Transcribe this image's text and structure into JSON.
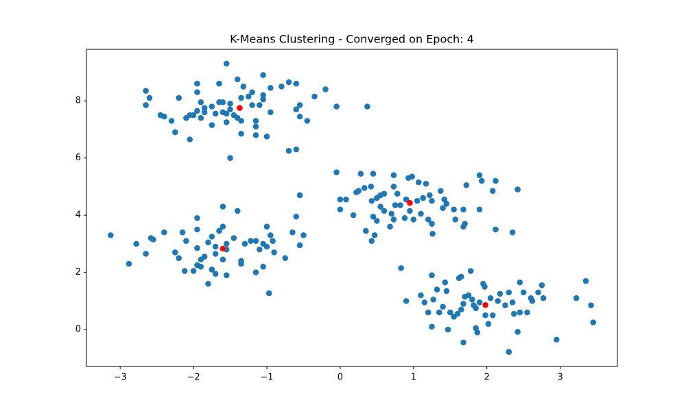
{
  "chart_data": {
    "type": "scatter",
    "title": "K-Means Clustering - Converged on Epoch: 4",
    "xlim": [
      -3.46,
      3.78
    ],
    "ylim": [
      -1.29,
      9.8
    ],
    "xticks": [
      {
        "value": -3,
        "label": "−3"
      },
      {
        "value": -2,
        "label": "−2"
      },
      {
        "value": -1,
        "label": "−1"
      },
      0,
      1,
      2,
      3
    ],
    "yticks": [
      0,
      2,
      4,
      6,
      8
    ],
    "series": [
      {
        "color": "#1f77b4",
        "x": [
          -1.55,
          -2.65,
          -2.6,
          -2.65,
          -2.2,
          -1.95,
          -1.95,
          -1.65,
          -1.4,
          -1.32,
          -1.05,
          -0.95,
          -0.8,
          -0.7,
          -0.6,
          -0.35,
          -0.2,
          -0.55,
          -0.6,
          -0.55,
          -0.45,
          -0.95,
          -1.05,
          -1.05,
          -1.2,
          -1.25,
          -1.35,
          -1.5,
          -1.6,
          -1.65,
          -1.75,
          -1.9,
          -1.85,
          -1.95,
          -1.9,
          -2.05,
          -2.1,
          -2.3,
          -2.45,
          -2.4,
          -2.0,
          -2.25,
          -2.05,
          -1.75,
          -1.6,
          -1.55,
          -1.5,
          -1.45,
          -1.4,
          -1.35,
          -1.55,
          -1.35,
          -1.15,
          -1.15,
          -1.15,
          -1.0,
          -0.7,
          -0.6,
          -1.5,
          -0.05,
          0.37,
          -1.2,
          -1.1,
          -1.7,
          -1.85,
          -0.05,
          0.28,
          0.45,
          0.73,
          0.98,
          0.93,
          1.07,
          1.17,
          1.9,
          1.93,
          2.12,
          1.72,
          2.42,
          2.08,
          0.0,
          0.08,
          0.22,
          0.25,
          0.33,
          0.42,
          0.55,
          0.6,
          0.73,
          0.78,
          0.9,
          1.05,
          1.13,
          1.22,
          1.25,
          1.37,
          1.42,
          1.45,
          1.55,
          1.68,
          1.9,
          0.43,
          0.5,
          0.55,
          0.6,
          0.7,
          0.75,
          0.82,
          0.95,
          1.1,
          1.2,
          1.25,
          1.0,
          0.88,
          0.73,
          0.68,
          0.5,
          0.45,
          0.35,
          0.47,
          0.43,
          0.18,
          0.0,
          1.26,
          1.4,
          1.57,
          1.68,
          1.7,
          2.12,
          2.35,
          -3.13,
          -2.88,
          -2.78,
          -2.65,
          -2.58,
          -2.55,
          -2.4,
          -2.25,
          -2.2,
          -2.15,
          -2.1,
          -2.12,
          -2.0,
          -1.95,
          -1.9,
          -1.85,
          -1.95,
          -1.95,
          -1.75,
          -1.8,
          -1.7,
          -1.65,
          -1.6,
          -1.6,
          -1.75,
          -1.7,
          -1.6,
          -1.55,
          -1.45,
          -1.35,
          -1.35,
          -1.3,
          -1.22,
          -1.15,
          -1.05,
          -1.1,
          -1.0,
          -0.95,
          -1.0,
          -0.92,
          -0.9,
          -1.05,
          -1.15,
          -0.97,
          -1.55,
          -1.7,
          -1.8,
          -1.9,
          -1.4,
          -0.75,
          -0.65,
          -0.6,
          -0.55,
          -0.5,
          -0.55,
          -1.95,
          -1.55,
          0.83,
          0.9,
          1.1,
          1.15,
          1.2,
          1.25,
          1.27,
          1.32,
          1.35,
          1.4,
          1.45,
          1.43,
          1.47,
          1.55,
          1.6,
          1.62,
          1.65,
          1.65,
          1.68,
          1.7,
          1.75,
          1.78,
          1.8,
          1.82,
          1.85,
          1.85,
          1.87,
          1.9,
          1.95,
          1.97,
          1.98,
          2.02,
          2.05,
          2.08,
          2.15,
          2.18,
          2.25,
          2.3,
          2.35,
          2.37,
          2.42,
          2.45,
          2.45,
          2.5,
          2.55,
          2.6,
          2.62,
          2.7,
          2.75,
          2.77,
          1.68,
          2.3,
          2.95,
          3.22,
          3.35,
          3.42,
          3.45,
          1.25,
          1.5
        ],
        "values": [
          9.3,
          8.35,
          8.1,
          7.85,
          8.1,
          8.6,
          8.3,
          8.6,
          8.75,
          8.5,
          8.9,
          8.45,
          8.5,
          8.65,
          8.6,
          8.15,
          8.4,
          7.85,
          7.7,
          7.45,
          7.3,
          7.6,
          8.05,
          8.2,
          8.3,
          8.15,
          8.1,
          7.9,
          7.95,
          7.95,
          7.8,
          7.95,
          7.75,
          7.65,
          7.4,
          7.5,
          7.4,
          7.3,
          7.5,
          7.45,
          7.5,
          6.9,
          6.65,
          7.15,
          7.6,
          7.55,
          7.7,
          7.5,
          7.4,
          7.3,
          7.25,
          6.85,
          7.1,
          7.3,
          6.8,
          6.75,
          6.25,
          6.3,
          6.0,
          7.8,
          7.8,
          7.85,
          7.85,
          7.55,
          7.6,
          5.5,
          5.45,
          5.45,
          5.4,
          5.35,
          5.3,
          5.15,
          5.1,
          5.4,
          5.2,
          5.2,
          5.05,
          4.9,
          4.85,
          4.55,
          4.55,
          4.8,
          4.85,
          4.95,
          5.0,
          4.7,
          4.75,
          5.0,
          4.75,
          4.55,
          4.5,
          4.6,
          4.7,
          4.5,
          4.85,
          4.55,
          4.4,
          4.2,
          4.2,
          4.2,
          4.5,
          4.6,
          4.3,
          4.15,
          4.05,
          4.35,
          4.35,
          4.15,
          4.05,
          3.85,
          3.7,
          3.85,
          3.9,
          3.85,
          3.6,
          3.8,
          3.95,
          3.45,
          3.3,
          3.1,
          4.0,
          4.2,
          3.35,
          4.25,
          3.85,
          3.6,
          3.7,
          3.5,
          3.4,
          3.3,
          2.3,
          3.0,
          2.65,
          3.2,
          3.15,
          3.4,
          2.7,
          2.5,
          3.4,
          3.1,
          2.05,
          2.05,
          2.85,
          2.45,
          2.55,
          3.5,
          3.9,
          3.25,
          3.05,
          2.9,
          3.45,
          3.6,
          4.3,
          2.1,
          2.65,
          2.45,
          2.8,
          3.2,
          2.4,
          2.3,
          3.0,
          3.1,
          3.1,
          3.0,
          2.8,
          2.9,
          3.3,
          3.6,
          3.1,
          2.7,
          2.2,
          2.0,
          1.27,
          1.9,
          1.95,
          1.6,
          2.2,
          4.15,
          2.5,
          3.4,
          3.95,
          4.7,
          3.3,
          2.95,
          2.25,
          3.0,
          2.15,
          1.0,
          1.2,
          0.95,
          0.6,
          1.9,
          1.05,
          1.4,
          0.6,
          0.8,
          1.35,
          1.65,
          0.0,
          0.45,
          0.55,
          1.8,
          1.85,
          0.7,
          0.9,
          1.15,
          1.2,
          2.05,
          1.05,
          0.85,
          0.75,
          0.05,
          -0.1,
          0.95,
          1.6,
          1.5,
          0.5,
          0.2,
          1.1,
          0.5,
          1.0,
          1.25,
          0.85,
          1.3,
          0.95,
          0.55,
          -0.08,
          0.6,
          1.65,
          1.3,
          0.6,
          1.1,
          1.0,
          1.3,
          1.55,
          1.1,
          -0.45,
          -0.78,
          -0.35,
          1.1,
          1.7,
          0.85,
          0.25,
          0.1,
          0.6
        ]
      },
      {
        "color": "#ff0000",
        "x": [
          -1.37,
          0.95,
          -1.6,
          1.98
        ],
        "values": [
          7.75,
          4.43,
          2.83,
          0.86
        ]
      }
    ]
  }
}
